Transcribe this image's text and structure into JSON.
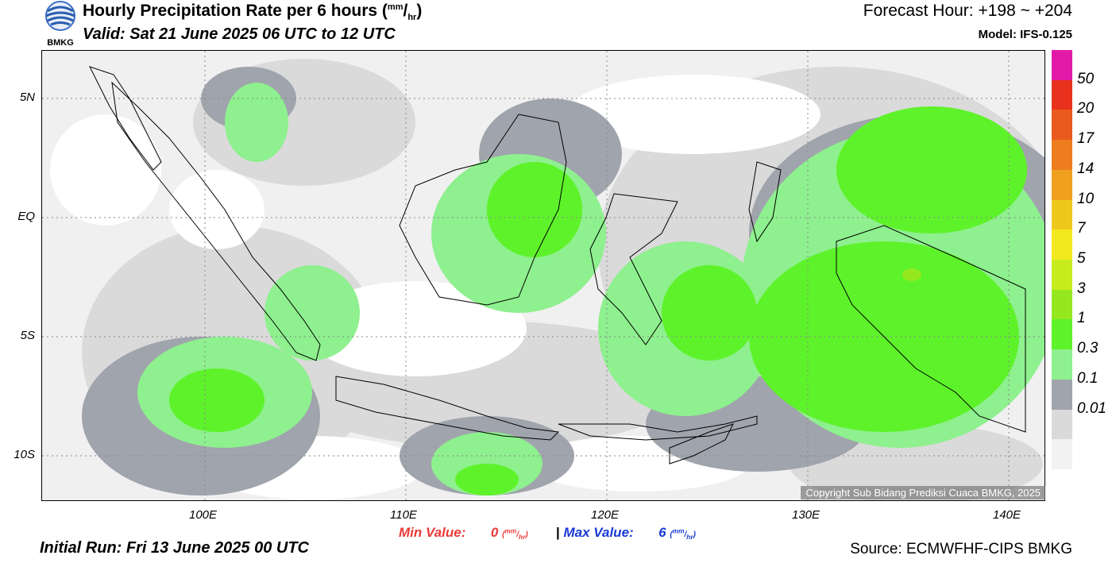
{
  "header": {
    "title": "Hourly Precipitation Rate per 6 hours",
    "title_unit_num": "mm",
    "title_unit_den": "hr",
    "valid": "Valid: Sat 21 June 2025 06 UTC to 12 UTC",
    "forecast_hour": "Forecast Hour: +198 ~ +204",
    "model": "Model: IFS-0.125",
    "logo_text": "BMKG"
  },
  "axes": {
    "y_ticks": [
      "5N",
      "EQ",
      "5S",
      "10S"
    ],
    "x_ticks": [
      "100E",
      "110E",
      "120E",
      "130E",
      "140E"
    ]
  },
  "legend": {
    "labels": [
      "50",
      "20",
      "17",
      "14",
      "10",
      "7",
      "5",
      "3",
      "1",
      "0.3",
      "0.1",
      "0.01"
    ],
    "colors": [
      "#e31aa8",
      "#e8321e",
      "#ea5a1e",
      "#ed7d1e",
      "#eea01e",
      "#efc81e",
      "#f2ea1e",
      "#c6ec1e",
      "#96e81e",
      "#5ef22a",
      "#8ef08e",
      "#a0a4ac",
      "#dadada",
      "#f2f2f2"
    ]
  },
  "stats": {
    "min_label": "Min Value:",
    "min_value": "0",
    "max_label": "Max Value:",
    "max_value": "6",
    "separator": "|",
    "unit_num": "mm",
    "unit_den": "hr",
    "min_color": "#ea3a3a",
    "max_color": "#1a3ad6"
  },
  "footer": {
    "initial_run": "Initial Run: Fri 13 June 2025 00 UTC",
    "source": "Source: ECMWFHF-CIPS BMKG",
    "copyright": "Copyright Sub Bidang Prediksi Cuaca BMKG, 2025"
  }
}
